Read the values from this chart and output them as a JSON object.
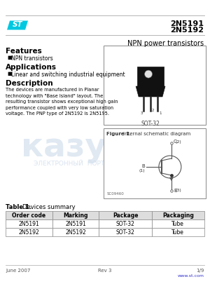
{
  "title_line1": "2N5191",
  "title_line2": "2N5192",
  "subtitle": "NPN power transistors",
  "logo_color": "#00C8E0",
  "features_title": "Features",
  "features_items": [
    "NPN transistors"
  ],
  "applications_title": "Applications",
  "applications_items": [
    "Linear and switching industrial equipment"
  ],
  "description_title": "Description",
  "description_text": "The devices are manufactured in Planar\ntechnology with \"Base Island\" layout. The\nresulting transistor shows exceptional high gain\nperformance coupled with very low saturation\nvoltage. The PNP type of 2N5192 is 2N5195.",
  "figure1_title": "Figure 1.",
  "figure1_subtitle": "Internal schematic diagram",
  "package_label": "SOT-32",
  "table_title": "Table 1.",
  "table_subtitle": "Devices summary",
  "table_headers": [
    "Order code",
    "Marking",
    "Package",
    "Packaging"
  ],
  "table_rows": [
    [
      "2N5191",
      "2N5191",
      "SOT-32",
      "Tube"
    ],
    [
      "2N5192",
      "2N5192",
      "SOT-32",
      "Tube"
    ]
  ],
  "footer_left": "June 2007",
  "footer_center": "Rev 3",
  "footer_right": "1/9",
  "footer_link": "www.st.com",
  "header_line_color": "#AAAAAA",
  "watermark_color": "#C8D8E8",
  "bg_color": "#FFFFFF",
  "text_color": "#000000"
}
